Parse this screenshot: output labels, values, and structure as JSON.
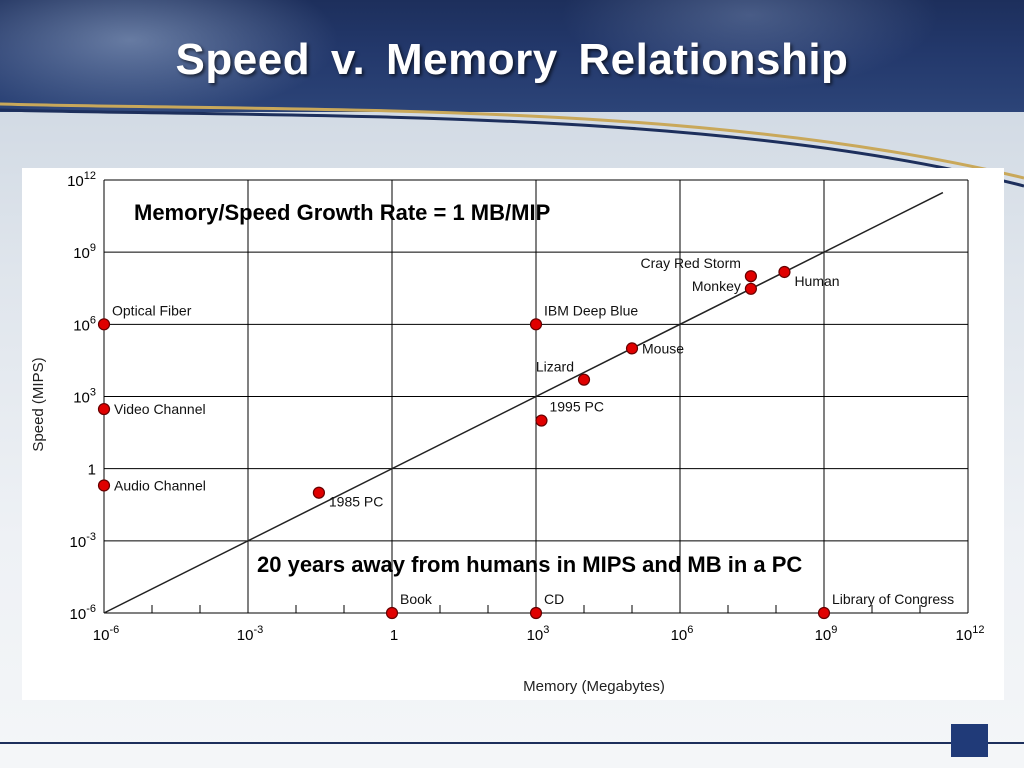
{
  "slide": {
    "title": "Speed  v.  Memory  Relationship",
    "colors": {
      "banner": "#1d2f5c",
      "accent": "#203a78",
      "point": "#e00000"
    }
  },
  "chart_data": {
    "type": "scatter",
    "title": "",
    "xlabel": "Memory (Megabytes)",
    "ylabel": "Speed (MIPS)",
    "x_scale": "log",
    "y_scale": "log",
    "xlim": [
      1e-06,
      1000000000000.0
    ],
    "ylim": [
      1e-06,
      1000000000000.0
    ],
    "grid": true,
    "x_ticks": [
      {
        "base": "10",
        "exp": "-6"
      },
      {
        "base": "10",
        "exp": "-3"
      },
      {
        "base": "1",
        "exp": ""
      },
      {
        "base": "10",
        "exp": "3"
      },
      {
        "base": "10",
        "exp": "6"
      },
      {
        "base": "10",
        "exp": "9"
      },
      {
        "base": "10",
        "exp": "12"
      }
    ],
    "y_ticks": [
      {
        "base": "10",
        "exp": "-6"
      },
      {
        "base": "10",
        "exp": "-3"
      },
      {
        "base": "1",
        "exp": ""
      },
      {
        "base": "10",
        "exp": "3"
      },
      {
        "base": "10",
        "exp": "6"
      },
      {
        "base": "10",
        "exp": "9"
      },
      {
        "base": "10",
        "exp": "12"
      }
    ],
    "trend_line": {
      "label": "Memory/Speed Growth Rate = 1 MB/MIP",
      "x": [
        1e-06,
        300000000000.0
      ],
      "y": [
        1e-06,
        300000000000.0
      ]
    },
    "annotation": "20 years away from humans in MIPS and MB in a PC",
    "points": [
      {
        "label": "Optical Fiber",
        "x": 1e-06,
        "y": 1000000.0,
        "label_pos": "right-above"
      },
      {
        "label": "Video Channel",
        "x": 1e-06,
        "y": 300,
        "label_pos": "right"
      },
      {
        "label": "Audio Channel",
        "x": 1e-06,
        "y": 0.2,
        "label_pos": "right"
      },
      {
        "label": "1985 PC",
        "x": 0.03,
        "y": 0.1,
        "label_pos": "right-below"
      },
      {
        "label": "Book",
        "x": 1,
        "y": 1e-06,
        "label_pos": "right-above"
      },
      {
        "label": "CD",
        "x": 1000,
        "y": 1e-06,
        "label_pos": "right-above"
      },
      {
        "label": "Library of Congress",
        "x": 1000000000.0,
        "y": 1e-06,
        "label_pos": "right-above"
      },
      {
        "label": "IBM Deep Blue",
        "x": 1000,
        "y": 1000000.0,
        "label_pos": "right-above"
      },
      {
        "label": "1995 PC",
        "x": 1300,
        "y": 100,
        "label_pos": "right-above"
      },
      {
        "label": "Lizard",
        "x": 10000,
        "y": 5000,
        "label_pos": "left-above"
      },
      {
        "label": "Mouse",
        "x": 100000,
        "y": 100000.0,
        "label_pos": "right"
      },
      {
        "label": "Monkey",
        "x": 30000000.0,
        "y": 30000000.0,
        "label_pos": "left"
      },
      {
        "label": "Cray Red Storm",
        "x": 30000000.0,
        "y": 100000000.0,
        "label_pos": "left-above"
      },
      {
        "label": "Human",
        "x": 150000000.0,
        "y": 150000000.0,
        "label_pos": "right-below"
      }
    ]
  }
}
